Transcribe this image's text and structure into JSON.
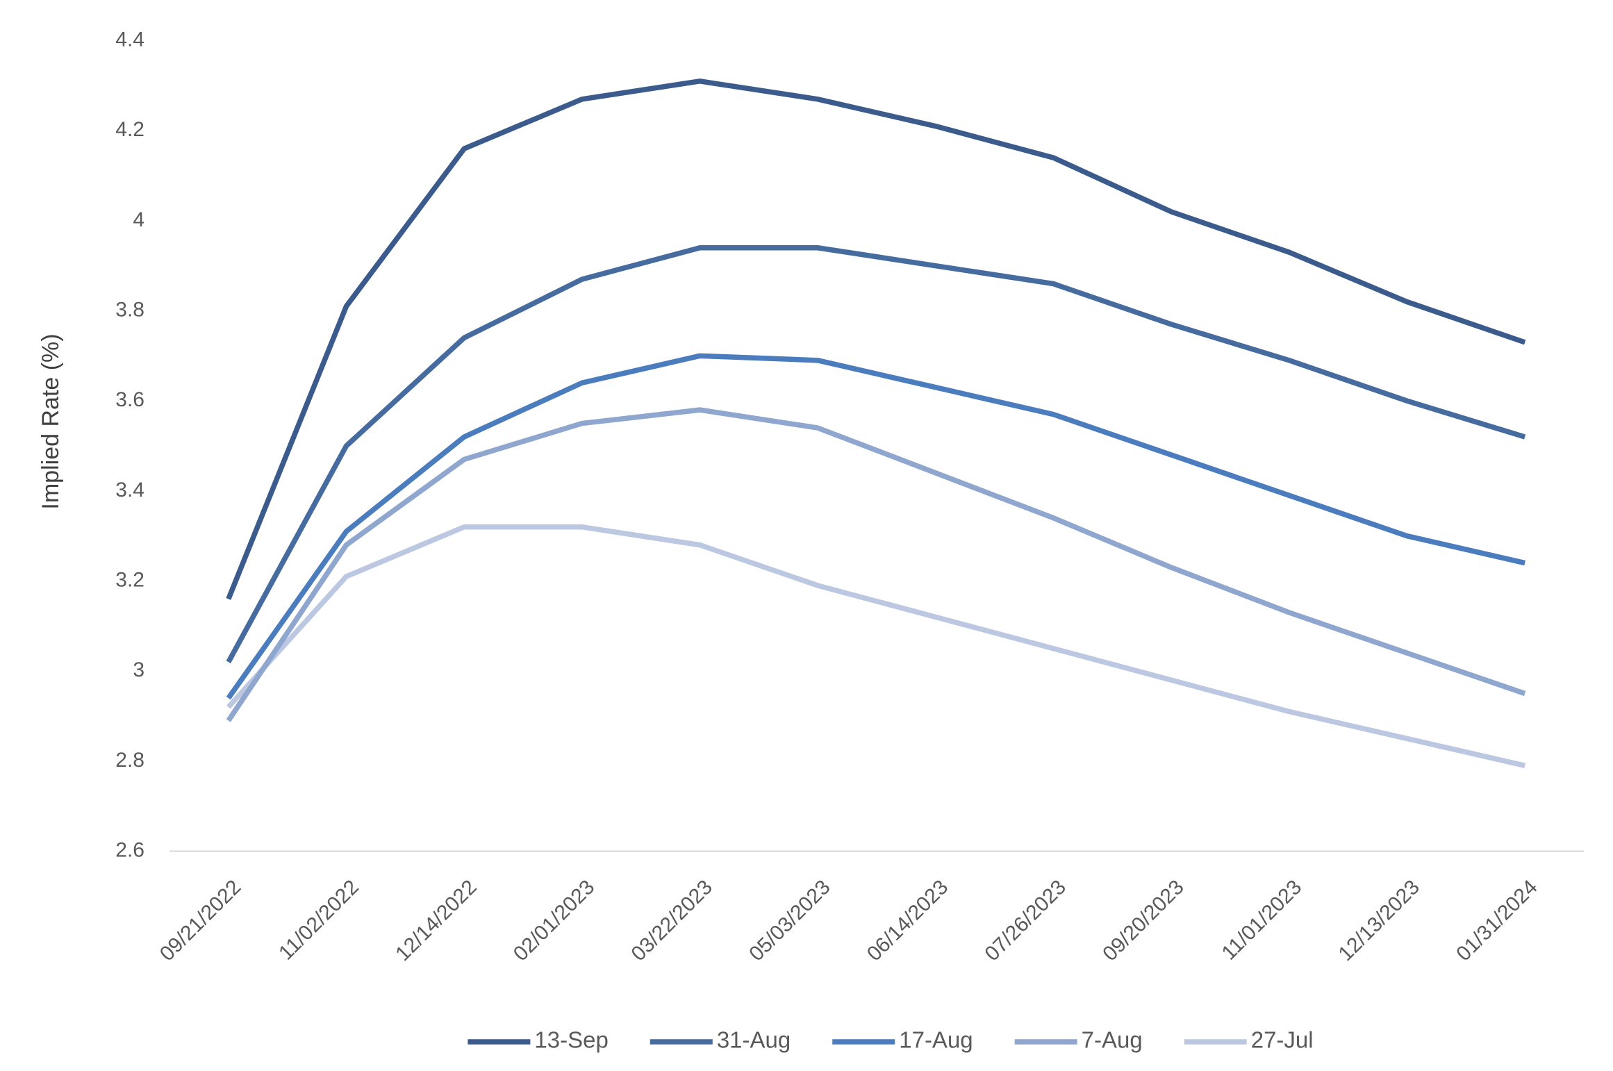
{
  "chart_data": {
    "type": "line",
    "y_label": "Implied Rate (%)",
    "categories": [
      "09/21/2022",
      "11/02/2022",
      "12/14/2022",
      "02/01/2023",
      "03/22/2023",
      "05/03/2023",
      "06/14/2023",
      "07/26/2023",
      "09/20/2023",
      "11/01/2023",
      "12/13/2023",
      "01/31/2024"
    ],
    "series": [
      {
        "name": "13-Sep",
        "color": "#3b5b8d",
        "values": [
          3.16,
          3.81,
          4.16,
          4.27,
          4.31,
          4.27,
          4.21,
          4.14,
          4.02,
          3.93,
          3.82,
          3.73
        ]
      },
      {
        "name": "31-Aug",
        "color": "#466b9f",
        "values": [
          3.02,
          3.5,
          3.74,
          3.87,
          3.94,
          3.94,
          3.9,
          3.86,
          3.77,
          3.69,
          3.6,
          3.52
        ]
      },
      {
        "name": "17-Aug",
        "color": "#4b7cbd",
        "values": [
          2.94,
          3.31,
          3.52,
          3.64,
          3.7,
          3.69,
          3.63,
          3.57,
          3.48,
          3.39,
          3.3,
          3.24
        ]
      },
      {
        "name": "7-Aug",
        "color": "#8fa6cf",
        "values": [
          2.89,
          3.28,
          3.47,
          3.55,
          3.58,
          3.54,
          3.44,
          3.34,
          3.23,
          3.13,
          3.04,
          2.95
        ]
      },
      {
        "name": "27-Jul",
        "color": "#bcc8e1",
        "values": [
          2.92,
          3.21,
          3.32,
          3.32,
          3.28,
          3.19,
          3.12,
          3.05,
          2.98,
          2.91,
          2.85,
          2.79
        ]
      }
    ],
    "ylim": [
      2.6,
      4.4
    ],
    "yticks": [
      2.6,
      2.8,
      3,
      3.2,
      3.4,
      3.6,
      3.8,
      4,
      4.2,
      4.4
    ],
    "grid": false,
    "legend": "bottom"
  }
}
